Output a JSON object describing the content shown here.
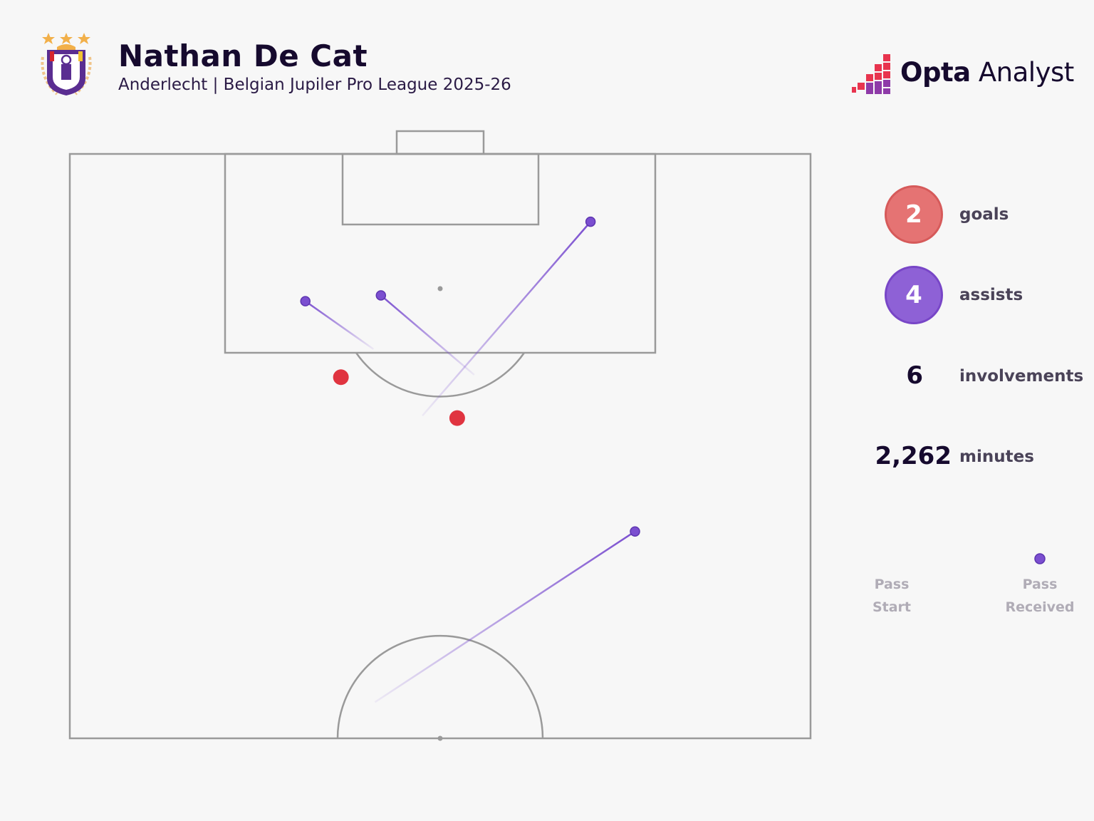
{
  "header": {
    "title": "Nathan De Cat",
    "subtitle": "Anderlecht | Belgian Jupiler Pro League 2025-26",
    "brand_strong": "Opta",
    "brand_light": " Analyst"
  },
  "stats": [
    {
      "key": "goals",
      "value": "2",
      "label": "goals",
      "style": "badge",
      "color": "#e57373"
    },
    {
      "key": "assists",
      "value": "4",
      "label": "assists",
      "style": "badge",
      "color": "#8e61d6"
    },
    {
      "key": "involvements",
      "value": "6",
      "label": "involvements",
      "style": "plain"
    },
    {
      "key": "minutes",
      "value": "2,262",
      "label": "minutes",
      "style": "plain"
    }
  ],
  "legend": {
    "start_label": "Pass\nStart",
    "end_label": "Pass\nReceived"
  },
  "colors": {
    "pass": "#7b4fd0",
    "goal": "#e03440",
    "pitch_line": "#9a9a9a"
  },
  "chart_data": {
    "type": "scatter",
    "x_range": [
      0,
      100
    ],
    "y_range": [
      50,
      100
    ],
    "assists": [
      {
        "start": [
          41.0,
          83.3
        ],
        "end": [
          31.8,
          87.4
        ]
      },
      {
        "start": [
          54.6,
          81.1
        ],
        "end": [
          42.0,
          87.9
        ]
      },
      {
        "start": [
          47.6,
          77.6
        ],
        "end": [
          70.3,
          94.2
        ]
      },
      {
        "start": [
          41.2,
          53.1
        ],
        "end": [
          76.3,
          67.7
        ]
      }
    ],
    "goals": [
      {
        "x": 36.6,
        "y": 80.9
      },
      {
        "x": 52.3,
        "y": 77.4
      }
    ]
  }
}
